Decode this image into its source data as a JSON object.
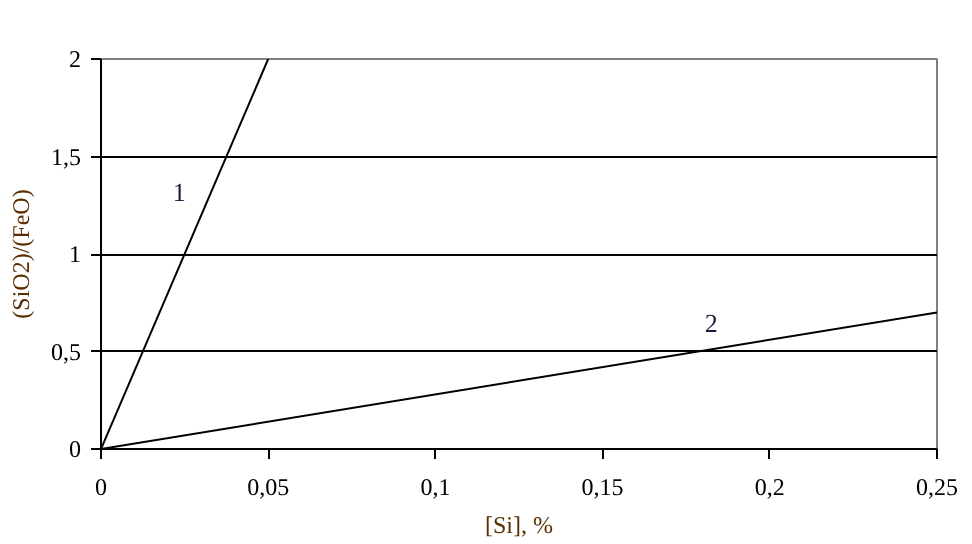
{
  "chart_data": {
    "type": "line",
    "xlabel": "[Si], %",
    "ylabel": "(SiO2)/(FeO)",
    "xlim": [
      0,
      0.25
    ],
    "ylim": [
      0,
      2
    ],
    "xticks": [
      0,
      {
        "value": 0.05,
        "label": "0,05"
      },
      {
        "value": 0.1,
        "label": "0,1"
      },
      {
        "value": 0.15,
        "label": "0,15"
      },
      {
        "value": 0.2,
        "label": "0,2"
      },
      {
        "value": 0.25,
        "label": "0,25"
      }
    ],
    "yticks": [
      0,
      {
        "value": 0.5,
        "label": "0,5"
      },
      1,
      {
        "value": 1.5,
        "label": "1,5"
      },
      2
    ],
    "grid": "y",
    "marker": "none",
    "line_style": "solid",
    "series": [
      {
        "name": "1",
        "color": "#000000",
        "x": [
          0,
          0.05
        ],
        "values": [
          0,
          2
        ]
      },
      {
        "name": "2",
        "color": "#000000",
        "x": [
          0,
          0.25
        ],
        "values": [
          0,
          0.7
        ]
      }
    ]
  }
}
